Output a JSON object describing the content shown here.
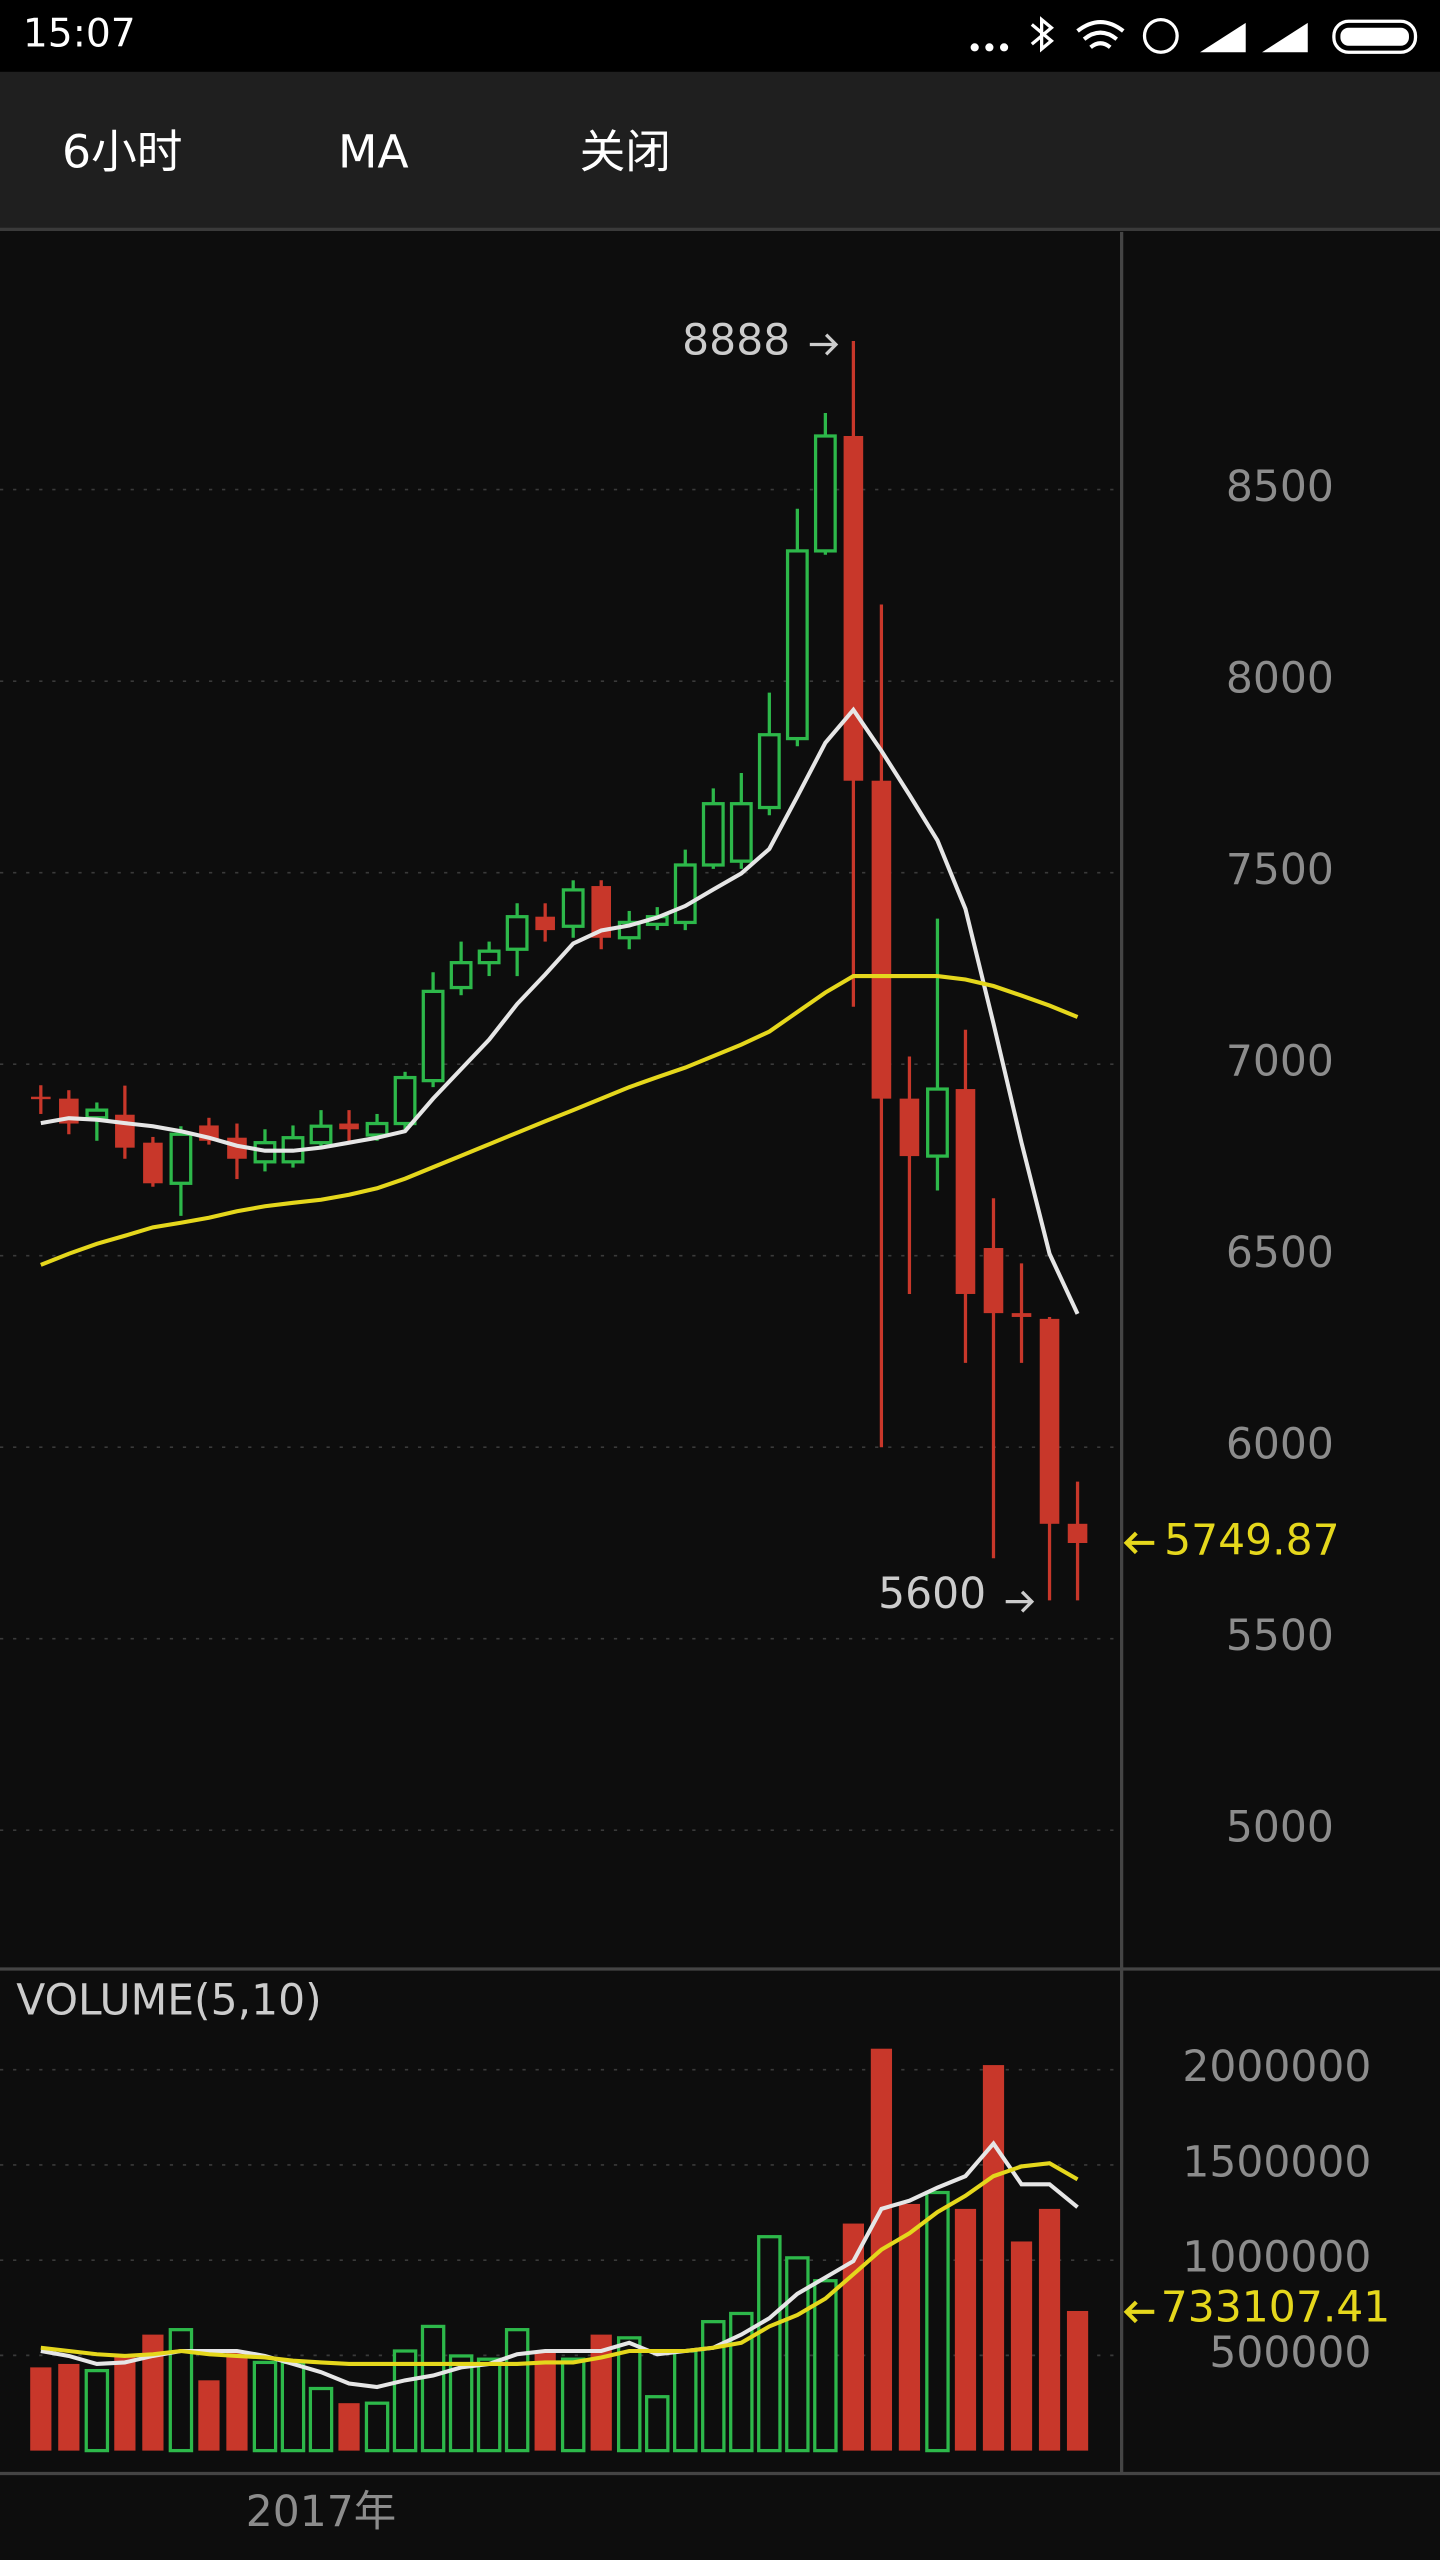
{
  "status_bar": {
    "time": "15:07"
  },
  "toolbar": {
    "items": [
      "6小时",
      "MA",
      "关闭"
    ]
  },
  "chart_data": [
    {
      "type": "candlestick",
      "open": [
        6915,
        6910,
        6860,
        6868,
        6795,
        6689,
        6840,
        6808,
        6745,
        6745,
        6795,
        6845,
        6815,
        6845,
        6957,
        7200,
        7265,
        7300,
        7385,
        7360,
        7465,
        7330,
        7365,
        7370,
        7520,
        7530,
        7670,
        7850,
        8340,
        8640,
        7740,
        6910,
        6760,
        6935,
        6520,
        6350,
        6335,
        5800
      ],
      "high": [
        6945,
        6932,
        6900,
        6944,
        6810,
        6838,
        6860,
        6845,
        6830,
        6840,
        6880,
        6880,
        6870,
        6980,
        7240,
        7320,
        7320,
        7420,
        7420,
        7480,
        7480,
        7400,
        7410,
        7560,
        7720,
        7760,
        7970,
        8450,
        8700,
        8888,
        8200,
        7020,
        7380,
        7090,
        6650,
        6480,
        6340,
        5910
      ],
      "low": [
        6870,
        6817,
        6800,
        6753,
        6680,
        6604,
        6790,
        6700,
        6720,
        6730,
        6780,
        6800,
        6800,
        6830,
        6940,
        7180,
        7230,
        7230,
        7320,
        7330,
        7300,
        7300,
        7350,
        7350,
        7510,
        7510,
        7650,
        7830,
        8330,
        7150,
        6000,
        6400,
        6670,
        6220,
        5710,
        6220,
        5600,
        5600
      ],
      "close": [
        6910,
        6845,
        6880,
        6782,
        6689,
        6817,
        6800,
        6753,
        6795,
        6808,
        6838,
        6830,
        6845,
        6965,
        7190,
        7265,
        7295,
        7385,
        7350,
        7455,
        7330,
        7370,
        7385,
        7520,
        7680,
        7680,
        7860,
        8340,
        8640,
        7740,
        6910,
        6760,
        6935,
        6400,
        6350,
        6340,
        5800,
        5749.87
      ],
      "series": [
        {
          "color": "#e6e6e6",
          "values": [
            6846,
            6859,
            6855,
            6846,
            6838,
            6825,
            6808,
            6787,
            6774,
            6774,
            6782,
            6795,
            6808,
            6825,
            6910,
            6987,
            7064,
            7157,
            7234,
            7315,
            7349,
            7362,
            7383,
            7413,
            7456,
            7498,
            7562,
            7699,
            7839,
            7925,
            7818,
            7703,
            7584,
            7405,
            7106,
            6795,
            6505,
            6348
          ]
        },
        {
          "color": "#e5d71c",
          "values": [
            6476,
            6505,
            6531,
            6552,
            6574,
            6586,
            6599,
            6616,
            6629,
            6638,
            6646,
            6659,
            6676,
            6701,
            6731,
            6761,
            6791,
            6821,
            6851,
            6880,
            6910,
            6940,
            6966,
            6991,
            7021,
            7051,
            7085,
            7136,
            7187,
            7230,
            7230,
            7230,
            7230,
            7221,
            7204,
            7179,
            7153,
            7123
          ]
        }
      ],
      "up_color": "#2db84a",
      "down_color": "#c8372a",
      "highlight_color": "#e5d71c",
      "ylim": [
        4642,
        9173
      ],
      "yticks": [
        5000,
        5500,
        6000,
        6500,
        7000,
        7500,
        8000,
        8500
      ],
      "grid": true
    },
    {
      "type": "bar",
      "title": "VOLUME(5,10)",
      "categories": [
        null,
        null,
        null,
        null,
        null,
        null,
        null,
        null,
        null,
        null,
        "2017年",
        null,
        null,
        null,
        null,
        null,
        null,
        null,
        null,
        null,
        null,
        null,
        null,
        null,
        null,
        null,
        null,
        null,
        null,
        null,
        null,
        null,
        null,
        null,
        null,
        null,
        null,
        null
      ],
      "values": [
        437000,
        455000,
        420000,
        497000,
        609000,
        635000,
        369000,
        523000,
        463000,
        463000,
        326000,
        249000,
        249000,
        523000,
        652000,
        497000,
        480000,
        635000,
        523000,
        480000,
        609000,
        592000,
        283000,
        523000,
        677000,
        720000,
        1123000,
        1012000,
        892000,
        1192000,
        2110000,
        1295000,
        1355000,
        1269000,
        2024000,
        1098000,
        1269000,
        733107.41
      ],
      "series": [
        {
          "color": "#e6e6e6",
          "values": [
            523000,
            497000,
            455000,
            463000,
            497000,
            523000,
            523000,
            523000,
            497000,
            455000,
            412000,
            352000,
            334000,
            369000,
            394000,
            437000,
            455000,
            506000,
            523000,
            523000,
            523000,
            566000,
            506000,
            523000,
            540000,
            609000,
            695000,
            823000,
            909000,
            995000,
            1269000,
            1312000,
            1381000,
            1441000,
            1612000,
            1398000,
            1398000,
            1278000
          ]
        },
        {
          "color": "#e5d71c",
          "values": [
            540000,
            523000,
            506000,
            497000,
            506000,
            523000,
            506000,
            497000,
            489000,
            472000,
            463000,
            455000,
            455000,
            455000,
            455000,
            455000,
            455000,
            455000,
            463000,
            463000,
            489000,
            523000,
            523000,
            523000,
            540000,
            566000,
            652000,
            712000,
            798000,
            926000,
            1055000,
            1141000,
            1252000,
            1338000,
            1441000,
            1492000,
            1509000,
            1424000
          ]
        }
      ],
      "ylim": [
        0,
        2520000
      ],
      "yticks": [
        500000,
        1000000,
        1500000,
        2000000
      ],
      "grid": true
    }
  ]
}
